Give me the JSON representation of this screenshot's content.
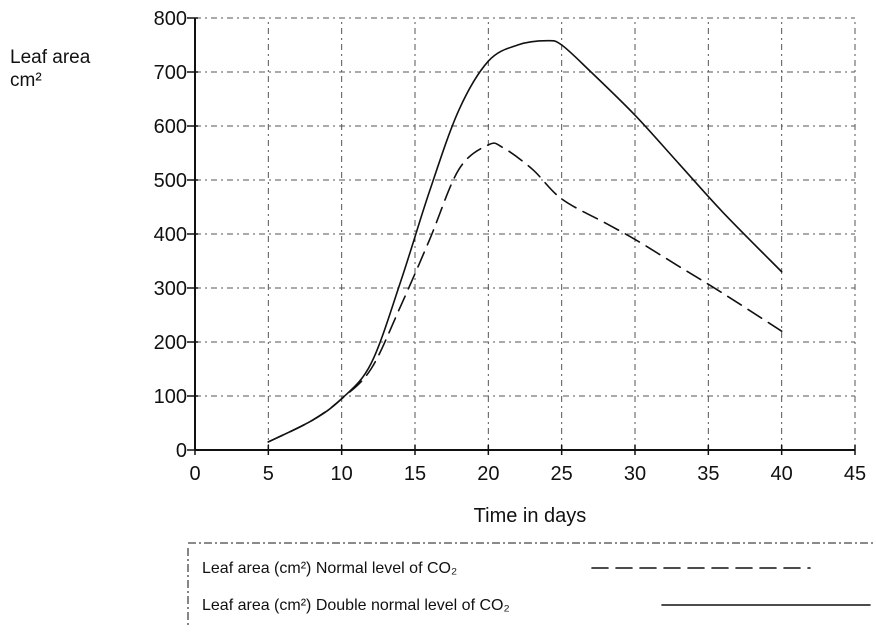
{
  "chart_data": {
    "type": "line",
    "title": "",
    "ylabel": [
      "Leaf area",
      "cm²"
    ],
    "xlabel": "Time in days",
    "xlim": [
      0,
      45
    ],
    "ylim": [
      0,
      800
    ],
    "x_ticks": [
      0,
      5,
      10,
      15,
      20,
      25,
      30,
      35,
      40,
      45
    ],
    "y_ticks": [
      0,
      100,
      200,
      300,
      400,
      500,
      600,
      700,
      800
    ],
    "grid": "dash-dot",
    "legend_position": "bottom",
    "series": [
      {
        "name": "Leaf area (cm²) Normal level of CO₂",
        "style": "dashed",
        "color": "#111111",
        "x": [
          5,
          8,
          10,
          12,
          14,
          16,
          18,
          20,
          21,
          23,
          25,
          28,
          30,
          33,
          36,
          40
        ],
        "y": [
          15,
          55,
          95,
          150,
          265,
          390,
          520,
          565,
          560,
          520,
          465,
          420,
          390,
          340,
          290,
          220
        ]
      },
      {
        "name": "Leaf area (cm²) Double normal level of CO₂",
        "style": "solid",
        "color": "#111111",
        "x": [
          5,
          8,
          10,
          12,
          14,
          16,
          18,
          20,
          22,
          24,
          25,
          27,
          30,
          33,
          36,
          40
        ],
        "y": [
          15,
          55,
          95,
          160,
          310,
          480,
          630,
          720,
          750,
          758,
          750,
          700,
          620,
          530,
          440,
          330
        ]
      }
    ]
  }
}
